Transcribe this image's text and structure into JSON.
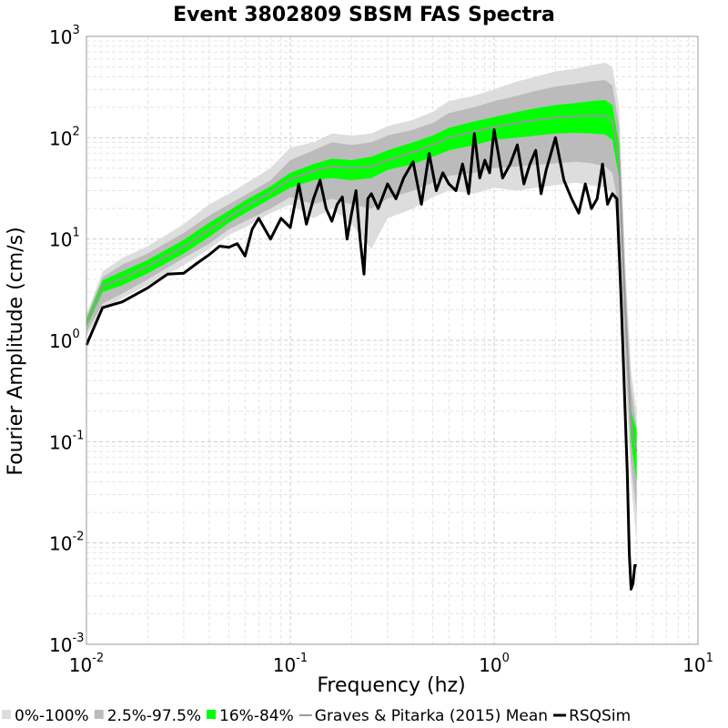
{
  "chart_data": {
    "type": "line",
    "title": "Event 3802809 SBSM FAS Spectra",
    "xlabel": "Frequency (hz)",
    "ylabel": "Fourier Amplitude (cm/s)",
    "x_scale": "log",
    "y_scale": "log",
    "xlim": [
      0.01,
      10
    ],
    "ylim": [
      0.001,
      1000
    ],
    "x_ticks": [
      {
        "base": "10",
        "exp": "-2",
        "value": 0.01
      },
      {
        "base": "10",
        "exp": "-1",
        "value": 0.1
      },
      {
        "base": "10",
        "exp": "0",
        "value": 1
      },
      {
        "base": "10",
        "exp": "1",
        "value": 10
      }
    ],
    "y_ticks": [
      {
        "base": "10",
        "exp": "-3",
        "value": 0.001
      },
      {
        "base": "10",
        "exp": "-2",
        "value": 0.01
      },
      {
        "base": "10",
        "exp": "-1",
        "value": 0.1
      },
      {
        "base": "10",
        "exp": "0",
        "value": 1
      },
      {
        "base": "10",
        "exp": "1",
        "value": 10
      },
      {
        "base": "10",
        "exp": "2",
        "value": 100
      },
      {
        "base": "10",
        "exp": "3",
        "value": 1000
      }
    ],
    "grid": true,
    "legend_position": "bottom",
    "x": [
      0.01,
      0.012,
      0.015,
      0.02,
      0.03,
      0.04,
      0.05,
      0.06,
      0.08,
      0.1,
      0.13,
      0.16,
      0.2,
      0.25,
      0.3,
      0.4,
      0.5,
      0.6,
      0.8,
      1.0,
      1.3,
      1.6,
      2.0,
      2.5,
      3.0,
      3.5,
      3.8,
      4.1,
      4.4,
      4.7,
      5.0
    ],
    "series": [
      {
        "name": "0%-100%",
        "kind": "band",
        "color": "#dddddd",
        "lower": [
          1.1,
          2.0,
          2.6,
          3.5,
          5.5,
          8.0,
          11.0,
          13.0,
          18.0,
          22.0,
          16.0,
          20.0,
          14.0,
          8.0,
          16.0,
          20.0,
          26.0,
          30.0,
          28.0,
          32.0,
          30.0,
          32.0,
          34.0,
          36.0,
          34.0,
          32.0,
          28.0,
          12.0,
          0.5,
          0.04,
          0.01
        ],
        "upper": [
          1.8,
          4.8,
          6.5,
          8.5,
          14.0,
          22.0,
          28.0,
          35.0,
          50.0,
          80.0,
          90.0,
          110.0,
          105.0,
          110.0,
          130.0,
          150.0,
          180.0,
          230.0,
          260.0,
          300.0,
          360.0,
          400.0,
          450.0,
          480.0,
          520.0,
          550.0,
          500.0,
          200.0,
          6.0,
          0.5,
          0.2
        ]
      },
      {
        "name": "2.5%-97.5%",
        "kind": "band",
        "color": "#bbbbbb",
        "lower": [
          1.2,
          2.3,
          2.9,
          4.0,
          6.5,
          9.0,
          12.5,
          15.0,
          20.0,
          26.0,
          22.0,
          25.0,
          22.0,
          20.0,
          25.0,
          30.0,
          36.0,
          42.0,
          45.0,
          50.0,
          52.0,
          54.0,
          56.0,
          58.0,
          56.0,
          52.0,
          45.0,
          20.0,
          0.8,
          0.06,
          0.02
        ],
        "upper": [
          1.7,
          4.2,
          5.6,
          7.2,
          11.5,
          17.0,
          22.0,
          27.0,
          38.0,
          60.0,
          75.0,
          90.0,
          85.0,
          90.0,
          105.0,
          120.0,
          140.0,
          175.0,
          200.0,
          230.0,
          260.0,
          290.0,
          320.0,
          340.0,
          360.0,
          370.0,
          330.0,
          130.0,
          4.0,
          0.35,
          0.14
        ]
      },
      {
        "name": "16%-84%",
        "kind": "band",
        "color": "#00ff00",
        "lower": [
          1.35,
          3.0,
          3.5,
          4.6,
          7.2,
          10.5,
          14.5,
          18.0,
          25.0,
          32.0,
          38.0,
          40.0,
          38.0,
          40.0,
          48.0,
          55.0,
          65.0,
          75.0,
          85.0,
          95.0,
          100.0,
          105.0,
          110.0,
          112.0,
          110.0,
          108.0,
          95.0,
          40.0,
          1.5,
          0.1,
          0.04
        ],
        "upper": [
          1.6,
          3.9,
          4.8,
          6.2,
          9.8,
          14.5,
          19.0,
          24.0,
          33.0,
          45.0,
          55.0,
          62.0,
          60.0,
          65.0,
          75.0,
          90.0,
          105.0,
          125.0,
          145.0,
          160.0,
          180.0,
          195.0,
          210.0,
          220.0,
          230.0,
          235.0,
          210.0,
          85.0,
          2.8,
          0.2,
          0.13
        ]
      },
      {
        "name": "Graves & Pitarka (2015) Mean",
        "kind": "line",
        "color": "#999999",
        "values": [
          1.45,
          3.4,
          4.1,
          5.4,
          8.4,
          12.3,
          16.5,
          21.0,
          29.0,
          39.0,
          47.0,
          52.0,
          50.0,
          52.0,
          60.0,
          72.0,
          85.0,
          100.0,
          115.0,
          128.0,
          140.0,
          150.0,
          158.0,
          162.0,
          165.0,
          165.0,
          145.0,
          60.0,
          2.0,
          0.15,
          0.08
        ]
      },
      {
        "name": "RSQSim",
        "kind": "line",
        "color": "#000000",
        "x": [
          0.01,
          0.012,
          0.015,
          0.02,
          0.025,
          0.03,
          0.035,
          0.04,
          0.045,
          0.05,
          0.055,
          0.06,
          0.065,
          0.07,
          0.08,
          0.09,
          0.1,
          0.11,
          0.12,
          0.13,
          0.14,
          0.15,
          0.16,
          0.17,
          0.18,
          0.19,
          0.2,
          0.21,
          0.22,
          0.23,
          0.24,
          0.25,
          0.27,
          0.3,
          0.33,
          0.36,
          0.4,
          0.44,
          0.48,
          0.52,
          0.56,
          0.6,
          0.65,
          0.7,
          0.75,
          0.8,
          0.85,
          0.9,
          0.95,
          1.0,
          1.1,
          1.2,
          1.3,
          1.4,
          1.5,
          1.6,
          1.7,
          1.8,
          2.0,
          2.2,
          2.4,
          2.6,
          2.8,
          3.0,
          3.2,
          3.4,
          3.6,
          3.8,
          4.0,
          4.2,
          4.35,
          4.5,
          4.6,
          4.7,
          4.8,
          4.9,
          5.0
        ],
        "values": [
          0.9,
          2.1,
          2.4,
          3.3,
          4.5,
          4.6,
          5.8,
          7.0,
          8.5,
          8.3,
          9.0,
          6.8,
          12.5,
          16.0,
          10.0,
          16.0,
          13.0,
          35.0,
          14.0,
          25.0,
          38.0,
          20.0,
          15.0,
          22.0,
          26.0,
          10.0,
          18.0,
          30.0,
          10.0,
          4.5,
          25.0,
          28.0,
          20.0,
          35.0,
          25.0,
          40.0,
          58.0,
          22.0,
          70.0,
          30.0,
          45.0,
          35.0,
          30.0,
          55.0,
          28.0,
          110.0,
          40.0,
          60.0,
          45.0,
          120.0,
          40.0,
          55.0,
          85.0,
          35.0,
          55.0,
          75.0,
          28.0,
          48.0,
          100.0,
          38.0,
          25.0,
          18.0,
          35.0,
          20.0,
          25.0,
          55.0,
          22.0,
          28.0,
          25.0,
          2.5,
          0.35,
          0.05,
          0.008,
          0.0035,
          0.004,
          0.006,
          0.006
        ]
      }
    ]
  }
}
